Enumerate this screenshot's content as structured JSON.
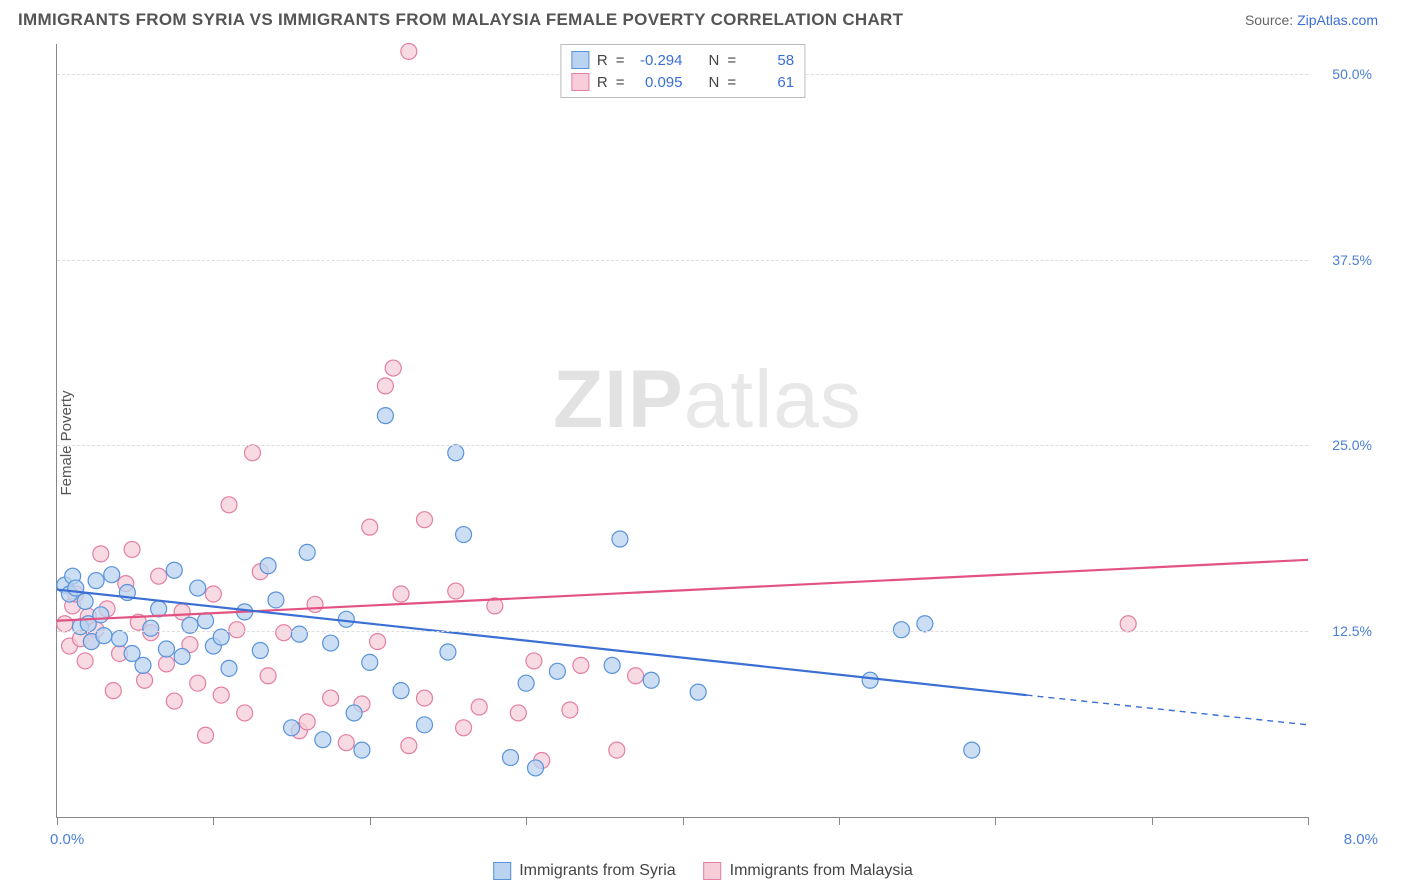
{
  "title": "IMMIGRANTS FROM SYRIA VS IMMIGRANTS FROM MALAYSIA FEMALE POVERTY CORRELATION CHART",
  "source_prefix": "Source: ",
  "source_link": "ZipAtlas.com",
  "ylabel": "Female Poverty",
  "watermark_bold": "ZIP",
  "watermark_light": "atlas",
  "chart": {
    "type": "scatter",
    "xlim": [
      0,
      8
    ],
    "ylim": [
      0,
      52
    ],
    "x_corner_left": "0.0%",
    "x_corner_right": "8.0%",
    "y_ticks": [
      12.5,
      25.0,
      37.5,
      50.0
    ],
    "y_tick_labels": [
      "12.5%",
      "25.0%",
      "37.5%",
      "50.0%"
    ],
    "x_tick_positions": [
      0,
      1,
      2,
      3,
      4,
      5,
      6,
      7,
      8
    ],
    "background_color": "#ffffff",
    "grid_color": "#dddddd",
    "series": [
      {
        "name": "Immigrants from Syria",
        "marker_color_fill": "#b9d3f0",
        "marker_color_stroke": "#5a93db",
        "marker_radius": 8,
        "line_color": "#3b6fd4",
        "line_width": 2.2,
        "R": "-0.294",
        "N": "58",
        "trend": {
          "x1": 0.0,
          "y1": 15.3,
          "x2": 6.2,
          "y2": 8.2,
          "x_dash_to": 8.0,
          "y_dash_to": 6.2
        },
        "points": [
          [
            0.05,
            15.6
          ],
          [
            0.08,
            15.0
          ],
          [
            0.1,
            16.2
          ],
          [
            0.12,
            15.4
          ],
          [
            0.15,
            12.8
          ],
          [
            0.18,
            14.5
          ],
          [
            0.2,
            13.0
          ],
          [
            0.22,
            11.8
          ],
          [
            0.25,
            15.9
          ],
          [
            0.28,
            13.6
          ],
          [
            0.3,
            12.2
          ],
          [
            0.35,
            16.3
          ],
          [
            0.4,
            12.0
          ],
          [
            0.45,
            15.1
          ],
          [
            0.48,
            11.0
          ],
          [
            0.55,
            10.2
          ],
          [
            0.6,
            12.7
          ],
          [
            0.65,
            14.0
          ],
          [
            0.7,
            11.3
          ],
          [
            0.75,
            16.6
          ],
          [
            0.8,
            10.8
          ],
          [
            0.85,
            12.9
          ],
          [
            0.9,
            15.4
          ],
          [
            0.95,
            13.2
          ],
          [
            1.0,
            11.5
          ],
          [
            1.05,
            12.1
          ],
          [
            1.1,
            10.0
          ],
          [
            1.2,
            13.8
          ],
          [
            1.3,
            11.2
          ],
          [
            1.35,
            16.9
          ],
          [
            1.4,
            14.6
          ],
          [
            1.5,
            6.0
          ],
          [
            1.55,
            12.3
          ],
          [
            1.6,
            17.8
          ],
          [
            1.7,
            5.2
          ],
          [
            1.75,
            11.7
          ],
          [
            1.85,
            13.3
          ],
          [
            1.9,
            7.0
          ],
          [
            1.95,
            4.5
          ],
          [
            2.0,
            10.4
          ],
          [
            2.1,
            27.0
          ],
          [
            2.2,
            8.5
          ],
          [
            2.35,
            6.2
          ],
          [
            2.5,
            11.1
          ],
          [
            2.55,
            24.5
          ],
          [
            2.6,
            19.0
          ],
          [
            2.9,
            4.0
          ],
          [
            3.0,
            9.0
          ],
          [
            3.06,
            3.3
          ],
          [
            3.2,
            9.8
          ],
          [
            3.55,
            10.2
          ],
          [
            3.6,
            18.7
          ],
          [
            3.8,
            9.2
          ],
          [
            4.1,
            8.4
          ],
          [
            5.2,
            9.2
          ],
          [
            5.55,
            13.0
          ],
          [
            5.85,
            4.5
          ],
          [
            5.4,
            12.6
          ]
        ]
      },
      {
        "name": "Immigrants from Malaysia",
        "marker_color_fill": "#f6cdd8",
        "marker_color_stroke": "#e37fa4",
        "marker_radius": 8,
        "line_color": "#e25383",
        "line_width": 2.2,
        "R": "0.095",
        "N": "61",
        "trend": {
          "x1": 0.0,
          "y1": 13.2,
          "x2": 8.0,
          "y2": 17.3
        },
        "points": [
          [
            0.05,
            13.0
          ],
          [
            0.08,
            11.5
          ],
          [
            0.1,
            14.2
          ],
          [
            0.12,
            15.0
          ],
          [
            0.15,
            12.0
          ],
          [
            0.18,
            10.5
          ],
          [
            0.2,
            13.5
          ],
          [
            0.22,
            11.8
          ],
          [
            0.25,
            12.6
          ],
          [
            0.28,
            17.7
          ],
          [
            0.32,
            14.0
          ],
          [
            0.36,
            8.5
          ],
          [
            0.4,
            11.0
          ],
          [
            0.44,
            15.7
          ],
          [
            0.48,
            18.0
          ],
          [
            0.52,
            13.1
          ],
          [
            0.56,
            9.2
          ],
          [
            0.6,
            12.4
          ],
          [
            0.65,
            16.2
          ],
          [
            0.7,
            10.3
          ],
          [
            0.75,
            7.8
          ],
          [
            0.8,
            13.8
          ],
          [
            0.85,
            11.6
          ],
          [
            0.9,
            9.0
          ],
          [
            0.95,
            5.5
          ],
          [
            1.0,
            15.0
          ],
          [
            1.05,
            8.2
          ],
          [
            1.1,
            21.0
          ],
          [
            1.2,
            7.0
          ],
          [
            1.25,
            24.5
          ],
          [
            1.3,
            16.5
          ],
          [
            1.35,
            9.5
          ],
          [
            1.45,
            12.4
          ],
          [
            1.55,
            5.8
          ],
          [
            1.6,
            6.4
          ],
          [
            1.65,
            14.3
          ],
          [
            1.75,
            8.0
          ],
          [
            1.85,
            5.0
          ],
          [
            1.95,
            7.6
          ],
          [
            2.0,
            19.5
          ],
          [
            2.05,
            11.8
          ],
          [
            2.1,
            29.0
          ],
          [
            2.15,
            30.2
          ],
          [
            2.2,
            15.0
          ],
          [
            2.25,
            4.8
          ],
          [
            2.35,
            8.0
          ],
          [
            2.25,
            51.5
          ],
          [
            2.35,
            20.0
          ],
          [
            2.55,
            15.2
          ],
          [
            2.7,
            7.4
          ],
          [
            2.8,
            14.2
          ],
          [
            2.6,
            6.0
          ],
          [
            2.95,
            7.0
          ],
          [
            3.05,
            10.5
          ],
          [
            3.1,
            3.8
          ],
          [
            3.28,
            7.2
          ],
          [
            3.35,
            10.2
          ],
          [
            3.58,
            4.5
          ],
          [
            3.7,
            9.5
          ],
          [
            6.85,
            13.0
          ],
          [
            1.15,
            12.6
          ]
        ]
      }
    ]
  },
  "legend_top": {
    "R_label": "R",
    "N_label": "N",
    "equals": "="
  },
  "legend_bottom": {
    "series1": "Immigrants from Syria",
    "series2": "Immigrants from Malaysia"
  }
}
